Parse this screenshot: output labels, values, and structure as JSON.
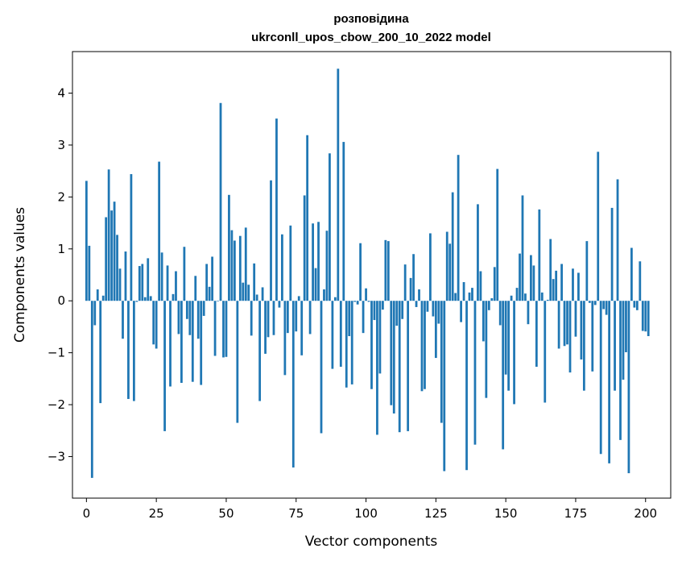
{
  "chart_data": {
    "type": "bar",
    "title": [
      "розповідина",
      "ukrconll_upos_cbow_200_10_2022 model"
    ],
    "xlabel": "Vector components",
    "ylabel": "Components values",
    "xlim": [
      -5,
      209
    ],
    "ylim": [
      -3.8,
      4.8
    ],
    "xticks": [
      0,
      25,
      50,
      75,
      100,
      125,
      150,
      175,
      200
    ],
    "yticks": [
      -3,
      -2,
      -1,
      0,
      1,
      2,
      3,
      4
    ],
    "ytick_labels": [
      "−3",
      "−2",
      "−1",
      "0",
      "1",
      "2",
      "3",
      "4"
    ],
    "bar_color": "#1f77b4",
    "grid": false,
    "values": [
      2.31,
      1.06,
      -3.41,
      -0.47,
      0.22,
      -1.97,
      0.1,
      1.61,
      2.53,
      1.74,
      1.91,
      1.27,
      0.62,
      -0.73,
      0.95,
      -1.89,
      2.44,
      -1.93,
      -0.02,
      0.67,
      0.71,
      0.07,
      0.82,
      0.09,
      -0.84,
      -0.92,
      2.68,
      0.93,
      -2.51,
      0.68,
      -1.65,
      0.13,
      0.57,
      -0.64,
      -1.58,
      1.04,
      -0.35,
      -0.66,
      -1.56,
      0.48,
      -0.73,
      -1.62,
      -0.29,
      0.71,
      0.27,
      0.85,
      -1.06,
      -0.01,
      3.81,
      -1.09,
      -1.08,
      2.04,
      1.36,
      1.16,
      -2.35,
      1.25,
      0.35,
      1.41,
      0.31,
      -0.67,
      0.72,
      0.12,
      -1.93,
      0.26,
      -1.02,
      -0.7,
      2.32,
      -0.66,
      3.51,
      -0.13,
      1.28,
      -1.43,
      -0.62,
      1.45,
      -3.21,
      -0.59,
      0.09,
      -1.05,
      2.03,
      3.19,
      -0.64,
      1.49,
      0.63,
      1.52,
      -2.55,
      0.22,
      1.35,
      2.84,
      -1.31,
      0.07,
      4.47,
      -1.27,
      3.06,
      -1.67,
      -0.68,
      -1.61,
      -0.02,
      -0.07,
      1.11,
      -0.62,
      0.24,
      -0.02,
      -1.7,
      -0.37,
      -2.58,
      -1.4,
      -0.17,
      1.17,
      1.15,
      -2.01,
      -2.17,
      -0.48,
      -2.53,
      -0.35,
      0.7,
      -2.51,
      0.44,
      0.9,
      -0.12,
      0.22,
      -1.74,
      -1.7,
      -0.21,
      1.3,
      -0.3,
      -1.1,
      -0.44,
      -2.35,
      -3.28,
      1.33,
      1.1,
      2.09,
      0.15,
      2.81,
      -0.41,
      0.36,
      -3.26,
      0.16,
      0.25,
      -2.77,
      1.86,
      0.57,
      -0.78,
      -1.87,
      -0.18,
      0.05,
      0.65,
      2.54,
      -0.47,
      -2.86,
      -1.42,
      -1.73,
      0.1,
      -1.99,
      0.25,
      0.91,
      2.03,
      0.14,
      -0.45,
      0.88,
      0.68,
      -1.27,
      1.76,
      0.16,
      -1.96,
      0.02,
      1.19,
      0.42,
      0.58,
      -0.92,
      0.71,
      -0.87,
      -0.84,
      -1.38,
      0.62,
      -0.69,
      0.54,
      -1.13,
      -1.73,
      1.15,
      -0.04,
      -1.36,
      -0.08,
      2.87,
      -2.95,
      -0.16,
      -0.27,
      -3.13,
      1.79,
      -1.73,
      2.34,
      -2.68,
      -1.52,
      -0.99,
      -3.32,
      1.02,
      -0.13,
      -0.18,
      0.76,
      -0.58,
      -0.59,
      -0.68
    ]
  }
}
